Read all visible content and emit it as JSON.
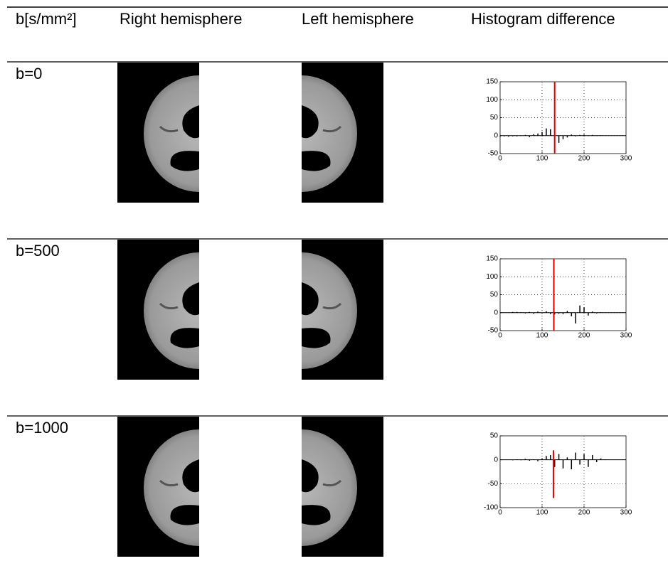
{
  "header": {
    "columns": [
      "b[s/mm²]",
      "Right hemisphere",
      "Left hemisphere",
      "Histogram difference"
    ]
  },
  "rows": [
    {
      "label": "b=0",
      "histogram": {
        "type": "bar",
        "xlim": [
          0,
          300
        ],
        "xticks": [
          0,
          100,
          200,
          300
        ],
        "ylim": [
          -50,
          150
        ],
        "yticks": [
          -50,
          0,
          50,
          100,
          150
        ],
        "x": [
          0,
          10,
          20,
          30,
          40,
          50,
          60,
          70,
          80,
          90,
          100,
          110,
          120,
          130,
          140,
          150,
          160,
          170,
          180,
          190,
          200,
          210,
          220,
          230,
          240,
          250,
          260
        ],
        "values": [
          -2,
          -2,
          -3,
          -2,
          -2,
          -1,
          2,
          -4,
          4,
          6,
          10,
          20,
          18,
          -40,
          -20,
          -10,
          -5,
          3,
          -2,
          2,
          3,
          -1,
          2,
          -1,
          1,
          0,
          0
        ],
        "color": "#000000",
        "marker": {
          "x": 130,
          "y": [
            -50,
            150
          ],
          "color": "#e00000"
        },
        "grid": true
      }
    },
    {
      "label": "b=500",
      "histogram": {
        "type": "bar",
        "xlim": [
          0,
          300
        ],
        "xticks": [
          0,
          100,
          200,
          300
        ],
        "ylim": [
          -50,
          150
        ],
        "yticks": [
          -50,
          0,
          50,
          100,
          150
        ],
        "x": [
          0,
          10,
          20,
          30,
          40,
          50,
          60,
          70,
          80,
          90,
          100,
          110,
          120,
          130,
          140,
          150,
          160,
          170,
          180,
          190,
          200,
          210,
          220,
          230,
          240,
          250,
          260
        ],
        "values": [
          0,
          0,
          0,
          2,
          2,
          1,
          -2,
          2,
          -3,
          3,
          -2,
          4,
          -4,
          -5,
          -3,
          -4,
          5,
          -10,
          -30,
          20,
          15,
          -8,
          3,
          -2,
          1,
          0,
          0
        ],
        "color": "#000000",
        "marker": {
          "x": 128,
          "y": [
            -50,
            150
          ],
          "color": "#e00000"
        },
        "grid": true
      }
    },
    {
      "label": "b=1000",
      "histogram": {
        "type": "bar",
        "xlim": [
          0,
          300
        ],
        "xticks": [
          0,
          100,
          200,
          300
        ],
        "ylim": [
          -100,
          50
        ],
        "yticks": [
          -100,
          -50,
          0,
          50
        ],
        "x": [
          0,
          10,
          20,
          30,
          40,
          50,
          60,
          70,
          80,
          90,
          100,
          110,
          120,
          130,
          140,
          150,
          160,
          170,
          180,
          190,
          200,
          210,
          220,
          230,
          240,
          250,
          260
        ],
        "values": [
          0,
          0,
          0,
          -1,
          1,
          -1,
          2,
          -2,
          1,
          -3,
          3,
          8,
          10,
          -15,
          12,
          -18,
          5,
          -20,
          15,
          -10,
          12,
          -15,
          10,
          -5,
          3,
          1,
          0
        ],
        "color": "#000000",
        "marker": {
          "x": 127,
          "y": [
            -80,
            20
          ],
          "color": "#e00000"
        },
        "grid": true
      }
    }
  ]
}
